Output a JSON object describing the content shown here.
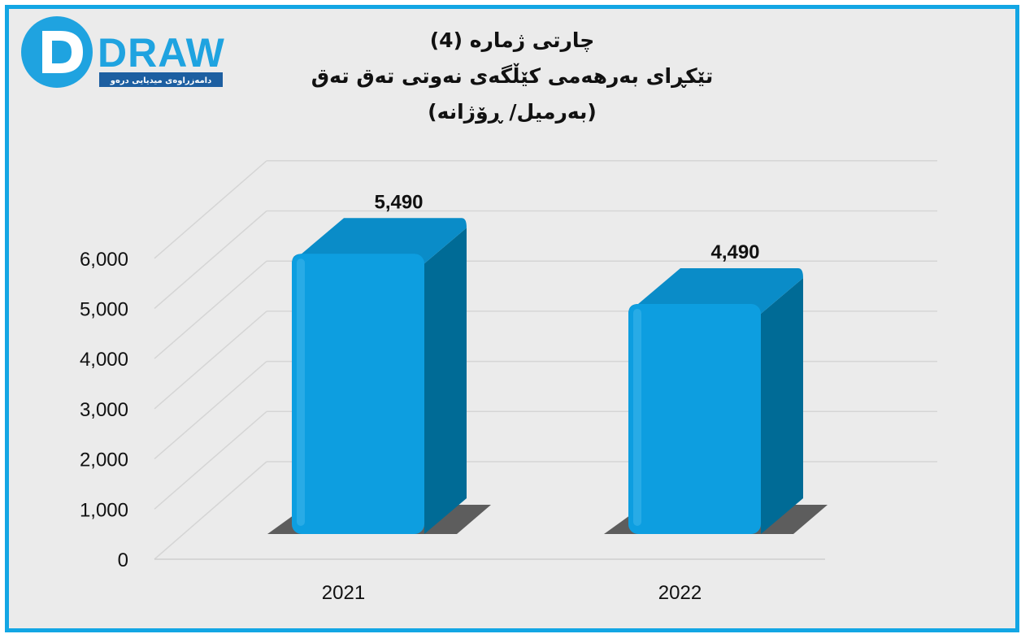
{
  "logo": {
    "wordmark": "DRAW",
    "tagline": "دامەزراوەی میدیایی درەو",
    "colors": {
      "blue": "#1fa3e0",
      "dark": "#1d5fa1"
    }
  },
  "title_lines": [
    "چارتی ژمارە (4)",
    "تێکڕای بەرهەمی کێڵگەی نەوتی تەق تەق",
    "(بەرمیل/ ڕۆژانە)"
  ],
  "colors": {
    "frame": "#13a6e4",
    "background": "#ebebeb",
    "bar_front": "#0d9ee0",
    "bar_side": "#006b96",
    "bar_top": "#0a8cc8",
    "gridline": "#d5d5d5"
  },
  "chart_data": {
    "type": "bar",
    "style": "3d",
    "categories": [
      "2021",
      "2022"
    ],
    "values": [
      5490,
      4490
    ],
    "data_labels": [
      "5,490",
      "4,490"
    ],
    "y_ticks": [
      "0",
      "1,000",
      "2,000",
      "3,000",
      "4,000",
      "5,000",
      "6,000"
    ],
    "ylim": [
      0,
      6000
    ],
    "grid": true,
    "legend": "none"
  }
}
